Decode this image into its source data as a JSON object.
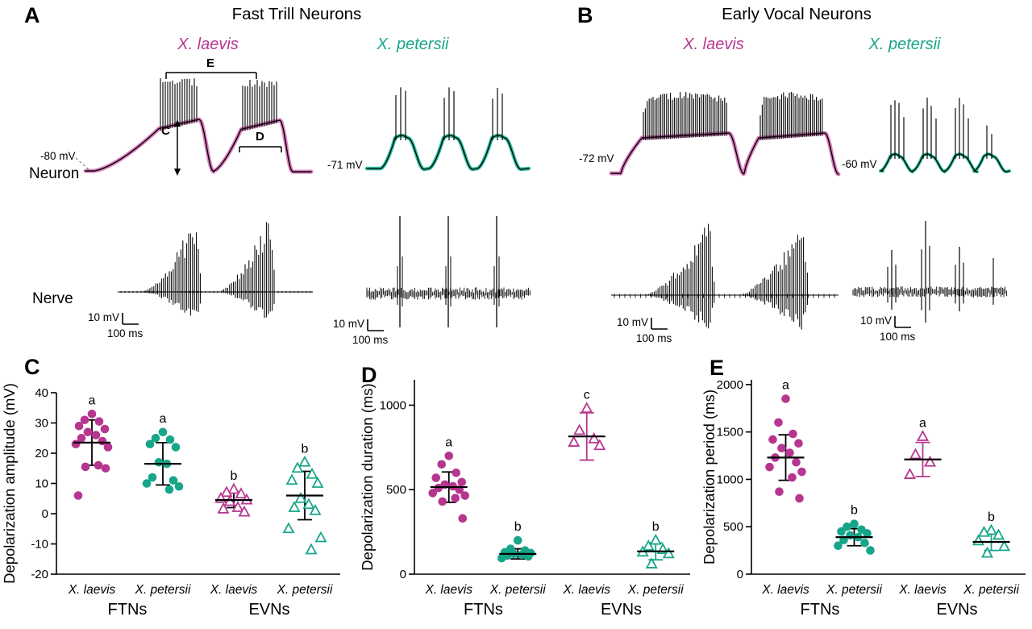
{
  "colors": {
    "laevis": "#B6368F",
    "petersii": "#17A589",
    "laevis_envelope": "#DC7FC0",
    "petersii_envelope": "#2FBF9E",
    "black": "#000000"
  },
  "figure": {
    "panel_a": {
      "letter": "A",
      "title": "Fast Trill Neurons",
      "species_left": "X. laevis",
      "species_right": "X. petersii",
      "rest_left": "-80 mV",
      "rest_right": "-71 mV",
      "bracket_period": "E",
      "arrow_amplitude": "C",
      "bracket_duration": "D",
      "scale_v": "10 mV",
      "scale_h": "100 ms"
    },
    "panel_b": {
      "letter": "B",
      "title": "Early Vocal Neurons",
      "species_left": "X. laevis",
      "species_right": "X. petersii",
      "rest_left": "-72 mV",
      "rest_right": "-60 mV",
      "scale_v": "10 mV",
      "scale_h": "100 ms"
    },
    "row_labels": {
      "neuron": "Neuron",
      "nerve": "Nerve"
    }
  },
  "chart_data": [
    {
      "id": "C",
      "panel_letter": "C",
      "type": "scatter",
      "ylabel": "Depolarization amplitude (mV)",
      "ylim": [
        -20,
        40
      ],
      "yticks": [
        -20,
        -10,
        0,
        10,
        20,
        30,
        40
      ],
      "cohorts": [
        "FTNs",
        "EVNs"
      ],
      "groups": [
        {
          "species": "X. laevis",
          "cohort": "FTNs",
          "marker": "circle",
          "filled": true,
          "color": "#B6368F",
          "err_color": "#000000",
          "sig": "a",
          "mean": 23.5,
          "sd": 7.5,
          "values": [
            33,
            31,
            30.5,
            29,
            28,
            27,
            26,
            25,
            24,
            23,
            22,
            16,
            15.5,
            15,
            6
          ]
        },
        {
          "species": "X. petersii",
          "cohort": "FTNs",
          "marker": "circle",
          "filled": true,
          "color": "#17A589",
          "err_color": "#000000",
          "sig": "a",
          "mean": 16.5,
          "sd": 7,
          "values": [
            27,
            25,
            24.5,
            23,
            22,
            17,
            16.5,
            12,
            11,
            10,
            9,
            8
          ]
        },
        {
          "species": "X. laevis",
          "cohort": "EVNs",
          "marker": "triangle",
          "filled": false,
          "color": "#B6368F",
          "err_color": "#000000",
          "sig": "b",
          "mean": 4.5,
          "sd": 2.5,
          "values": [
            8,
            7,
            6.5,
            5,
            4.5,
            4,
            2,
            1.5,
            0.5
          ]
        },
        {
          "species": "X. petersii",
          "cohort": "EVNs",
          "marker": "triangle",
          "filled": false,
          "color": "#17A589",
          "err_color": "#000000",
          "sig": "b",
          "mean": 6,
          "sd": 8,
          "values": [
            17,
            15,
            13,
            11,
            10,
            5,
            3,
            2,
            1,
            -5,
            -8,
            -12
          ]
        }
      ]
    },
    {
      "id": "D",
      "panel_letter": "D",
      "type": "scatter",
      "ylabel": "Depolarization duration (ms)",
      "ylim": [
        0,
        1150
      ],
      "yticks": [
        0,
        500,
        1000
      ],
      "cohorts": [
        "FTNs",
        "EVNs"
      ],
      "groups": [
        {
          "species": "X. laevis",
          "cohort": "FTNs",
          "marker": "circle",
          "filled": true,
          "color": "#B6368F",
          "err_color": "#000000",
          "sig": "a",
          "mean": 515,
          "sd": 90,
          "values": [
            700,
            650,
            600,
            570,
            545,
            530,
            520,
            510,
            500,
            480,
            465,
            450,
            430,
            330
          ]
        },
        {
          "species": "X. petersii",
          "cohort": "FTNs",
          "marker": "circle",
          "filled": true,
          "color": "#17A589",
          "err_color": "#000000",
          "sig": "b",
          "mean": 120,
          "sd": 30,
          "values": [
            200,
            150,
            140,
            130,
            125,
            120,
            115,
            110,
            105,
            95
          ]
        },
        {
          "species": "X. laevis",
          "cohort": "EVNs",
          "marker": "triangle",
          "filled": false,
          "color": "#B6368F",
          "err_color": "#B6368F",
          "sig": "c",
          "mean": 815,
          "sd": 140,
          "values": [
            980,
            850,
            800,
            780,
            760
          ]
        },
        {
          "species": "X. petersii",
          "cohort": "EVNs",
          "marker": "triangle",
          "filled": false,
          "color": "#17A589",
          "err_color": "#17A589",
          "sig": "b",
          "mean": 135,
          "sd": 50,
          "values": [
            200,
            165,
            145,
            130,
            120,
            60
          ]
        }
      ]
    },
    {
      "id": "E",
      "panel_letter": "E",
      "type": "scatter",
      "ylabel": "Depolarization period (ms)",
      "ylim": [
        0,
        2050
      ],
      "yticks": [
        0,
        500,
        1000,
        1500,
        2000
      ],
      "cohorts": [
        "FTNs",
        "EVNs"
      ],
      "groups": [
        {
          "species": "X. laevis",
          "cohort": "FTNs",
          "marker": "circle",
          "filled": true,
          "color": "#B6368F",
          "err_color": "#000000",
          "sig": "a",
          "mean": 1230,
          "sd": 240,
          "values": [
            1850,
            1600,
            1480,
            1420,
            1380,
            1330,
            1280,
            1230,
            1180,
            1130,
            1080,
            1020,
            870,
            800
          ]
        },
        {
          "species": "X. petersii",
          "cohort": "FTNs",
          "marker": "circle",
          "filled": true,
          "color": "#17A589",
          "err_color": "#000000",
          "sig": "b",
          "mean": 390,
          "sd": 90,
          "values": [
            530,
            500,
            470,
            450,
            430,
            410,
            390,
            360,
            330,
            300,
            250
          ]
        },
        {
          "species": "X. laevis",
          "cohort": "EVNs",
          "marker": "triangle",
          "filled": false,
          "color": "#B6368F",
          "err_color": "#B6368F",
          "sig": "a",
          "mean": 1210,
          "sd": 180,
          "values": [
            1450,
            1260,
            1180,
            1050
          ]
        },
        {
          "species": "X. petersii",
          "cohort": "EVNs",
          "marker": "triangle",
          "filled": false,
          "color": "#17A589",
          "err_color": "#17A589",
          "sig": "b",
          "mean": 340,
          "sd": 90,
          "values": [
            460,
            440,
            410,
            350,
            290,
            220
          ]
        }
      ]
    }
  ]
}
